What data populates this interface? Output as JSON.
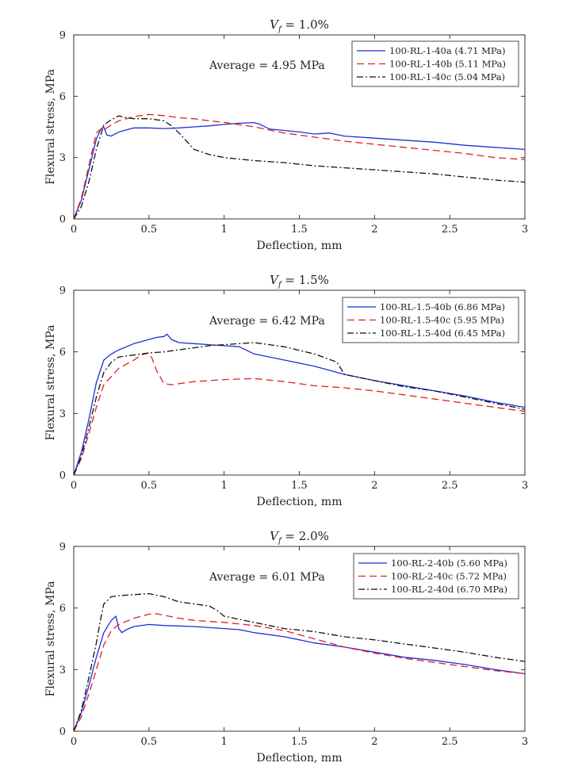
{
  "chart_data": [
    {
      "type": "line",
      "title": "V_f = 1.0%",
      "title_var": "V",
      "title_sub": "f",
      "title_rest": " = 1.0%",
      "xlabel": "Deflection, mm",
      "ylabel": "Flexural stress, MPa",
      "xlim": [
        0,
        3
      ],
      "ylim": [
        0,
        9
      ],
      "xticks": [
        0,
        0.5,
        1,
        1.5,
        2,
        2.5,
        3
      ],
      "xtick_labels": [
        "0",
        "0.5",
        "1",
        "1.5",
        "2",
        "2.5",
        "3"
      ],
      "yticks": [
        0,
        3,
        6,
        9
      ],
      "ytick_labels": [
        "0",
        "3",
        "6",
        "9"
      ],
      "annotation": "Average = 4.95 MPa",
      "legend_position": "top-right",
      "series": [
        {
          "name": "100-RL-1-40a (4.71 MPa)",
          "color": "#1f2fd6",
          "style": "solid",
          "x": [
            0,
            0.05,
            0.1,
            0.15,
            0.18,
            0.2,
            0.22,
            0.25,
            0.3,
            0.4,
            0.5,
            0.6,
            0.7,
            0.8,
            0.9,
            1.0,
            1.1,
            1.2,
            1.23,
            1.3,
            1.5,
            1.6,
            1.7,
            1.8,
            2.0,
            2.2,
            2.4,
            2.6,
            2.8,
            3.0
          ],
          "y": [
            0,
            0.9,
            2.4,
            3.9,
            4.4,
            4.5,
            4.1,
            4.05,
            4.25,
            4.45,
            4.45,
            4.42,
            4.45,
            4.5,
            4.55,
            4.62,
            4.68,
            4.71,
            4.65,
            4.4,
            4.25,
            4.15,
            4.2,
            4.05,
            3.95,
            3.85,
            3.75,
            3.6,
            3.5,
            3.4
          ]
        },
        {
          "name": "100-RL-1-40b (5.11 MPa)",
          "color": "#e02020",
          "style": "dashed",
          "x": [
            0,
            0.05,
            0.1,
            0.15,
            0.18,
            0.2,
            0.25,
            0.3,
            0.4,
            0.5,
            0.6,
            0.7,
            0.8,
            0.9,
            1.0,
            1.2,
            1.4,
            1.6,
            1.8,
            2.0,
            2.2,
            2.4,
            2.6,
            2.8,
            3.0
          ],
          "y": [
            0,
            1.0,
            2.6,
            4.2,
            4.4,
            4.35,
            4.6,
            4.8,
            5.0,
            5.11,
            5.05,
            4.95,
            4.9,
            4.8,
            4.72,
            4.5,
            4.2,
            4.0,
            3.8,
            3.65,
            3.5,
            3.35,
            3.2,
            3.0,
            2.9
          ]
        },
        {
          "name": "100-RL-1-40c (5.04 MPa)",
          "color": "#111111",
          "style": "dashdot",
          "x": [
            0,
            0.05,
            0.1,
            0.15,
            0.2,
            0.25,
            0.3,
            0.35,
            0.4,
            0.5,
            0.6,
            0.65,
            0.7,
            0.75,
            0.8,
            0.9,
            1.0,
            1.2,
            1.4,
            1.6,
            1.8,
            2.0,
            2.2,
            2.4,
            2.6,
            2.8,
            3.0
          ],
          "y": [
            0,
            0.6,
            1.8,
            3.4,
            4.6,
            4.85,
            5.04,
            4.95,
            4.9,
            4.9,
            4.8,
            4.55,
            4.2,
            3.8,
            3.4,
            3.15,
            3.0,
            2.85,
            2.75,
            2.6,
            2.5,
            2.4,
            2.3,
            2.2,
            2.05,
            1.9,
            1.8
          ]
        }
      ]
    },
    {
      "type": "line",
      "title": "V_f = 1.5%",
      "title_var": "V",
      "title_sub": "f",
      "title_rest": " = 1.5%",
      "xlabel": "Deflection, mm",
      "ylabel": "Flexural stress, MPa",
      "xlim": [
        0,
        3
      ],
      "ylim": [
        0,
        9
      ],
      "xticks": [
        0,
        0.5,
        1,
        1.5,
        2,
        2.5,
        3
      ],
      "xtick_labels": [
        "0",
        "0.5",
        "1",
        "1.5",
        "2",
        "2.5",
        "3"
      ],
      "yticks": [
        0,
        3,
        6,
        9
      ],
      "ytick_labels": [
        "0",
        "3",
        "6",
        "9"
      ],
      "annotation": "Average = 6.42 MPa",
      "legend_position": "top-right",
      "series": [
        {
          "name": "100-RL-1.5-40b (6.86 MPa)",
          "color": "#1f2fd6",
          "style": "solid",
          "x": [
            0,
            0.05,
            0.1,
            0.15,
            0.2,
            0.25,
            0.3,
            0.4,
            0.5,
            0.55,
            0.6,
            0.62,
            0.65,
            0.7,
            0.8,
            0.9,
            1.0,
            1.1,
            1.2,
            1.4,
            1.6,
            1.8,
            2.0,
            2.2,
            2.4,
            2.6,
            2.8,
            3.0
          ],
          "y": [
            0,
            1.1,
            2.7,
            4.5,
            5.6,
            5.9,
            6.1,
            6.4,
            6.6,
            6.7,
            6.75,
            6.86,
            6.6,
            6.45,
            6.4,
            6.35,
            6.3,
            6.25,
            5.9,
            5.6,
            5.3,
            4.9,
            4.6,
            4.35,
            4.1,
            3.85,
            3.55,
            3.3
          ]
        },
        {
          "name": "100-RL-1.5-40c (5.95 MPa)",
          "color": "#e02020",
          "style": "dashed",
          "x": [
            0,
            0.05,
            0.1,
            0.15,
            0.2,
            0.25,
            0.3,
            0.4,
            0.45,
            0.5,
            0.52,
            0.55,
            0.6,
            0.65,
            0.8,
            1.0,
            1.2,
            1.4,
            1.6,
            1.8,
            2.0,
            2.2,
            2.4,
            2.6,
            2.8,
            3.0
          ],
          "y": [
            0,
            0.8,
            2.0,
            3.3,
            4.4,
            4.8,
            5.2,
            5.6,
            5.85,
            5.95,
            5.7,
            5.1,
            4.45,
            4.4,
            4.55,
            4.65,
            4.7,
            4.55,
            4.35,
            4.25,
            4.1,
            3.9,
            3.7,
            3.5,
            3.3,
            3.1
          ]
        },
        {
          "name": "100-RL-1.5-40d (6.45 MPa)",
          "color": "#111111",
          "style": "dashdot",
          "x": [
            0,
            0.05,
            0.1,
            0.15,
            0.2,
            0.25,
            0.3,
            0.4,
            0.5,
            0.6,
            0.7,
            0.8,
            0.9,
            1.0,
            1.1,
            1.2,
            1.4,
            1.6,
            1.75,
            1.8,
            2.0,
            2.2,
            2.4,
            2.6,
            2.8,
            3.0
          ],
          "y": [
            0,
            0.9,
            2.3,
            3.8,
            5.0,
            5.5,
            5.75,
            5.85,
            5.95,
            6.0,
            6.1,
            6.2,
            6.3,
            6.35,
            6.4,
            6.45,
            6.25,
            5.9,
            5.5,
            4.9,
            4.6,
            4.3,
            4.1,
            3.8,
            3.5,
            3.2
          ]
        }
      ]
    },
    {
      "type": "line",
      "title": "V_f = 2.0%",
      "title_var": "V",
      "title_sub": "f",
      "title_rest": " = 2.0%",
      "xlabel": "Deflection, mm",
      "ylabel": "Flexural stress, MPa",
      "xlim": [
        0,
        3
      ],
      "ylim": [
        0,
        9
      ],
      "xticks": [
        0,
        0.5,
        1,
        1.5,
        2,
        2.5,
        3
      ],
      "xtick_labels": [
        "0",
        "0.5",
        "1",
        "1.5",
        "2",
        "2.5",
        "3"
      ],
      "yticks": [
        0,
        3,
        6,
        9
      ],
      "ytick_labels": [
        "0",
        "3",
        "6",
        "9"
      ],
      "annotation": "Average = 6.01 MPa",
      "legend_position": "top-right",
      "series": [
        {
          "name": "100-RL-2-40b (5.60 MPa)",
          "color": "#1f2fd6",
          "style": "solid",
          "x": [
            0,
            0.05,
            0.1,
            0.15,
            0.2,
            0.25,
            0.28,
            0.3,
            0.32,
            0.35,
            0.4,
            0.5,
            0.6,
            0.8,
            1.0,
            1.1,
            1.2,
            1.4,
            1.6,
            1.8,
            2.0,
            2.2,
            2.4,
            2.6,
            2.8,
            3.0
          ],
          "y": [
            0,
            0.9,
            2.2,
            3.6,
            4.8,
            5.4,
            5.6,
            5.0,
            4.8,
            4.95,
            5.1,
            5.2,
            5.15,
            5.1,
            5.0,
            4.95,
            4.8,
            4.6,
            4.3,
            4.1,
            3.85,
            3.6,
            3.45,
            3.25,
            3.0,
            2.8
          ]
        },
        {
          "name": "100-RL-2-40c (5.72 MPa)",
          "color": "#e02020",
          "style": "dashed",
          "x": [
            0,
            0.05,
            0.1,
            0.15,
            0.2,
            0.25,
            0.3,
            0.4,
            0.5,
            0.55,
            0.6,
            0.7,
            0.8,
            1.0,
            1.2,
            1.4,
            1.6,
            1.8,
            2.0,
            2.2,
            2.4,
            2.6,
            2.8,
            3.0
          ],
          "y": [
            0,
            0.7,
            1.8,
            3.0,
            4.2,
            4.9,
            5.2,
            5.5,
            5.7,
            5.72,
            5.65,
            5.5,
            5.4,
            5.3,
            5.15,
            4.9,
            4.5,
            4.1,
            3.8,
            3.55,
            3.35,
            3.15,
            2.95,
            2.8
          ]
        },
        {
          "name": "100-RL-2-40d (6.70 MPa)",
          "color": "#111111",
          "style": "dashdot",
          "x": [
            0,
            0.05,
            0.1,
            0.15,
            0.18,
            0.2,
            0.25,
            0.3,
            0.4,
            0.5,
            0.6,
            0.7,
            0.8,
            0.9,
            0.95,
            1.0,
            1.2,
            1.4,
            1.6,
            1.8,
            2.0,
            2.2,
            2.4,
            2.6,
            2.8,
            3.0
          ],
          "y": [
            0,
            1.0,
            2.6,
            4.3,
            5.5,
            6.2,
            6.55,
            6.6,
            6.65,
            6.7,
            6.55,
            6.3,
            6.2,
            6.1,
            5.9,
            5.6,
            5.3,
            5.0,
            4.85,
            4.6,
            4.45,
            4.25,
            4.05,
            3.85,
            3.6,
            3.4
          ]
        }
      ]
    }
  ]
}
